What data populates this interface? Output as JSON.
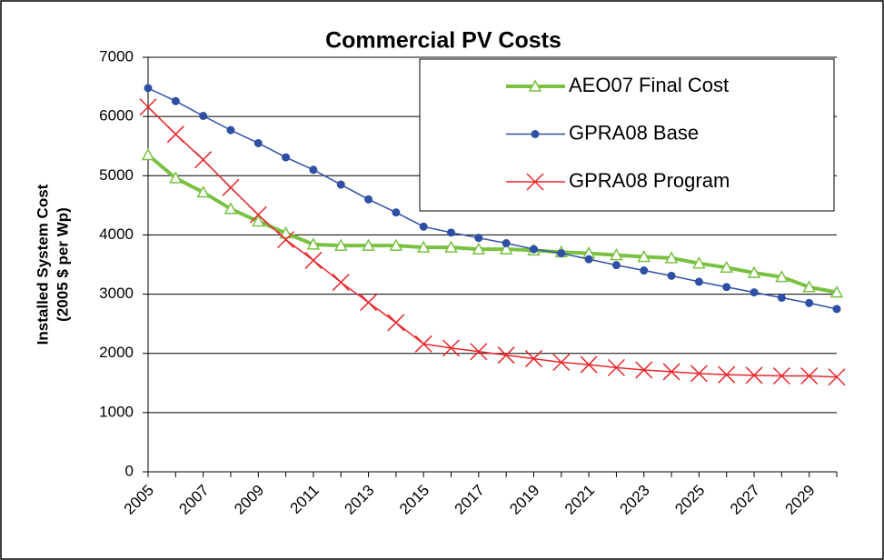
{
  "chart_data": {
    "type": "line",
    "title": "Commercial PV Costs",
    "ylabel": [
      "Installed System Cost",
      "(2005 $ per Wp)"
    ],
    "categories": [
      "2005",
      null,
      "2007",
      null,
      "2009",
      null,
      "2011",
      null,
      "2013",
      null,
      "2015",
      null,
      "2017",
      null,
      "2019",
      null,
      "2021",
      null,
      "2023",
      null,
      "2025",
      null,
      "2027",
      null,
      "2029",
      null
    ],
    "ylim": [
      0,
      7000
    ],
    "yticks": [
      0,
      1000,
      2000,
      3000,
      4000,
      5000,
      6000,
      7000
    ],
    "grid": true,
    "legend": "top-right",
    "series": [
      {
        "name": "AEO07 Final Cost",
        "color": "#7ac142",
        "marker": "triangle",
        "values": [
          5350,
          4960,
          4720,
          4440,
          4230,
          4030,
          3840,
          3820,
          3820,
          3820,
          3790,
          3790,
          3760,
          3760,
          3740,
          3710,
          3690,
          3660,
          3630,
          3610,
          3520,
          3450,
          3360,
          3290,
          3120,
          3030
        ]
      },
      {
        "name": "GPRA08 Base",
        "color": "#2e4fa3",
        "marker": "circle",
        "values": [
          6480,
          6260,
          6010,
          5770,
          5550,
          5310,
          5100,
          4850,
          4600,
          4380,
          4140,
          4040,
          3950,
          3860,
          3760,
          3690,
          3590,
          3490,
          3400,
          3310,
          3210,
          3120,
          3030,
          2940,
          2850,
          2750
        ]
      },
      {
        "name": "GPRA08 Program",
        "color": "#e8272b",
        "marker": "x",
        "values": [
          6160,
          5700,
          5270,
          4800,
          4340,
          3920,
          3570,
          3200,
          2860,
          2520,
          2160,
          2090,
          2030,
          1970,
          1910,
          1850,
          1810,
          1760,
          1720,
          1690,
          1660,
          1640,
          1630,
          1620,
          1620,
          1600
        ]
      }
    ]
  }
}
